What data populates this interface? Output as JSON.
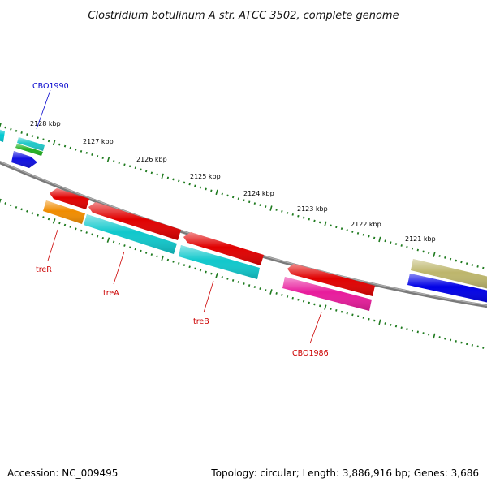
{
  "title": "Clostridium botulinum A str. ATCC 3502, complete genome",
  "footer": {
    "accession": "Accession: NC_009495",
    "topology": "Topology: circular; Length: 3,886,916 bp; Genes: 3,686"
  },
  "colors": {
    "backbone": "#888888",
    "ticks": "#1e7a1e",
    "forward_label": "#0000cc",
    "reverse_label": "#cc0000"
  },
  "kbp_labels": [
    "2128 kbp",
    "2127 kbp",
    "2126 kbp",
    "2125 kbp",
    "2124 kbp",
    "2123 kbp",
    "2122 kbp",
    "2121 kbp"
  ],
  "gene_labels": [
    "CBO1990",
    "treR",
    "treA",
    "treB",
    "CBO1986"
  ],
  "features": [
    {
      "name": "feature-cyan-left-edge",
      "color": "#00c8d2",
      "strand": "forward"
    },
    {
      "name": "feature-cyan-small",
      "color": "#20c8c8",
      "strand": "forward"
    },
    {
      "name": "feature-green-small",
      "color": "#22b022",
      "strand": "forward"
    },
    {
      "name": "feature-blue-cbo1990",
      "color": "#1010e0",
      "strand": "forward"
    },
    {
      "name": "feature-red-1",
      "color": "#e00000",
      "strand": "reverse"
    },
    {
      "name": "feature-red-2",
      "color": "#e00000",
      "strand": "reverse"
    },
    {
      "name": "feature-red-3",
      "color": "#e00000",
      "strand": "reverse"
    },
    {
      "name": "feature-red-4",
      "color": "#e00000",
      "strand": "reverse"
    },
    {
      "name": "feature-orange-trer",
      "color": "#f08c00",
      "strand": "reverse"
    },
    {
      "name": "feature-cyan-trea",
      "color": "#10c8cc",
      "strand": "reverse"
    },
    {
      "name": "feature-cyan-treb",
      "color": "#10c8cc",
      "strand": "reverse"
    },
    {
      "name": "feature-magenta-cbo1986",
      "color": "#e81c9c",
      "strand": "reverse"
    },
    {
      "name": "feature-olive",
      "color": "#bdb66c",
      "strand": "forward"
    },
    {
      "name": "feature-blue-right",
      "color": "#0000e6",
      "strand": "forward"
    }
  ]
}
